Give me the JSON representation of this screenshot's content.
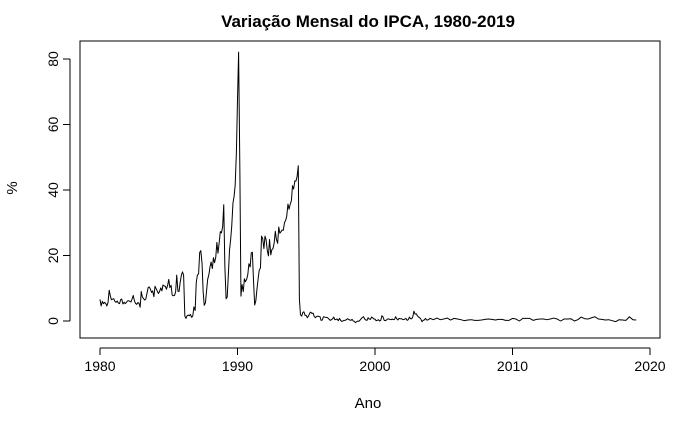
{
  "chart_data": {
    "type": "line",
    "title": "Variação Mensal do IPCA, 1980-2019",
    "xlabel": "Ano",
    "ylabel": "%",
    "xlim": [
      1980,
      2019
    ],
    "ylim": [
      0,
      82
    ],
    "x_ticks": [
      1980,
      1990,
      2000,
      2010,
      2020
    ],
    "x_tick_labels": [
      "1980",
      "1990",
      "2000",
      "2010",
      "2020"
    ],
    "y_ticks": [
      0,
      20,
      40,
      60,
      80
    ],
    "y_tick_labels": [
      "0",
      "20",
      "40",
      "60",
      "80"
    ],
    "grid": false,
    "series": [
      {
        "color": "#000000",
        "x": [
          1980.0,
          1980.08,
          1980.17,
          1980.25,
          1980.33,
          1980.42,
          1980.5,
          1980.58,
          1980.67,
          1980.75,
          1980.83,
          1980.92,
          1981.0,
          1981.08,
          1981.17,
          1981.25,
          1981.33,
          1981.42,
          1981.5,
          1981.58,
          1981.67,
          1981.75,
          1981.83,
          1981.92,
          1982.0,
          1982.08,
          1982.17,
          1982.25,
          1982.33,
          1982.42,
          1982.5,
          1982.58,
          1982.67,
          1982.75,
          1982.83,
          1982.92,
          1983.0,
          1983.08,
          1983.17,
          1983.25,
          1983.33,
          1983.42,
          1983.5,
          1983.58,
          1983.67,
          1983.75,
          1983.83,
          1983.92,
          1984.0,
          1984.08,
          1984.17,
          1984.25,
          1984.33,
          1984.42,
          1984.5,
          1984.58,
          1984.67,
          1984.75,
          1984.83,
          1984.92,
          1985.0,
          1985.08,
          1985.17,
          1985.25,
          1985.33,
          1985.42,
          1985.5,
          1985.58,
          1985.67,
          1985.75,
          1985.83,
          1985.92,
          1986.0,
          1986.08,
          1986.17,
          1986.25,
          1986.33,
          1986.42,
          1986.5,
          1986.58,
          1986.67,
          1986.75,
          1986.83,
          1986.92,
          1987.0,
          1987.08,
          1987.17,
          1987.25,
          1987.33,
          1987.42,
          1987.5,
          1987.58,
          1987.67,
          1987.75,
          1987.83,
          1987.92,
          1988.0,
          1988.08,
          1988.17,
          1988.25,
          1988.33,
          1988.42,
          1988.5,
          1988.58,
          1988.67,
          1988.75,
          1988.83,
          1988.92,
          1989.0,
          1989.08,
          1989.17,
          1989.25,
          1989.33,
          1989.42,
          1989.5,
          1989.58,
          1989.67,
          1989.75,
          1989.83,
          1989.92,
          1990.0,
          1990.08,
          1990.17,
          1990.25,
          1990.33,
          1990.42,
          1990.5,
          1990.58,
          1990.67,
          1990.75,
          1990.83,
          1990.92,
          1991.0,
          1991.08,
          1991.17,
          1991.25,
          1991.33,
          1991.42,
          1991.5,
          1991.58,
          1991.67,
          1991.75,
          1991.83,
          1991.92,
          1992.0,
          1992.08,
          1992.17,
          1992.25,
          1992.33,
          1992.42,
          1992.5,
          1992.58,
          1992.67,
          1992.75,
          1992.83,
          1992.92,
          1993.0,
          1993.08,
          1993.17,
          1993.25,
          1993.33,
          1993.42,
          1993.5,
          1993.58,
          1993.67,
          1993.75,
          1993.83,
          1993.92,
          1994.0,
          1994.08,
          1994.17,
          1994.25,
          1994.33,
          1994.42,
          1994.5,
          1994.58,
          1994.67,
          1994.75,
          1994.83,
          1994.92,
          1995.0,
          1995.08,
          1995.17,
          1995.25,
          1995.33,
          1995.42,
          1995.5,
          1995.58,
          1995.67,
          1995.75,
          1995.83,
          1995.92,
          1996.0,
          1996.08,
          1996.17,
          1996.25,
          1996.33,
          1996.42,
          1996.5,
          1996.58,
          1996.67,
          1996.75,
          1996.83,
          1996.92,
          1997.0,
          1997.08,
          1997.17,
          1997.25,
          1997.33,
          1997.42,
          1997.5,
          1997.58,
          1997.67,
          1997.75,
          1997.83,
          1997.92,
          1998.0,
          1998.08,
          1998.17,
          1998.25,
          1998.33,
          1998.42,
          1998.5,
          1998.58,
          1998.67,
          1998.75,
          1998.83,
          1998.92,
          1999.0,
          1999.08,
          1999.17,
          1999.25,
          1999.33,
          1999.42,
          1999.5,
          1999.58,
          1999.67,
          1999.75,
          1999.83,
          1999.92,
          2000.0,
          2000.08,
          2000.17,
          2000.25,
          2000.33,
          2000.42,
          2000.5,
          2000.58,
          2000.67,
          2000.75,
          2000.83,
          2000.92,
          2001.0,
          2001.08,
          2001.17,
          2001.25,
          2001.33,
          2001.42,
          2001.5,
          2001.58,
          2001.67,
          2001.75,
          2001.83,
          2001.92,
          2002.0,
          2002.08,
          2002.17,
          2002.25,
          2002.33,
          2002.42,
          2002.5,
          2002.58,
          2002.67,
          2002.75,
          2002.83,
          2002.92,
          2003.0,
          2003.08,
          2003.17,
          2003.25,
          2003.33,
          2003.42,
          2003.5,
          2003.58,
          2003.67,
          2003.75,
          2003.83,
          2003.92,
          2004.0,
          2004.25,
          2004.5,
          2004.75,
          2005.0,
          2005.25,
          2005.5,
          2005.75,
          2006.0,
          2006.25,
          2006.5,
          2006.75,
          2007.0,
          2007.25,
          2007.5,
          2007.75,
          2008.0,
          2008.25,
          2008.5,
          2008.75,
          2009.0,
          2009.25,
          2009.5,
          2009.75,
          2010.0,
          2010.25,
          2010.5,
          2010.75,
          2011.0,
          2011.25,
          2011.5,
          2011.75,
          2012.0,
          2012.25,
          2012.5,
          2012.75,
          2013.0,
          2013.25,
          2013.5,
          2013.75,
          2014.0,
          2014.25,
          2014.5,
          2014.75,
          2015.0,
          2015.25,
          2015.5,
          2015.75,
          2016.0,
          2016.25,
          2016.5,
          2016.75,
          2017.0,
          2017.25,
          2017.5,
          2017.75,
          2018.0,
          2018.25,
          2018.5,
          2018.75,
          2019.0
        ],
        "y": [
          6.6,
          4.6,
          6.0,
          5.3,
          5.7,
          5.3,
          4.6,
          5.6,
          9.4,
          7.7,
          6.5,
          6.7,
          6.8,
          6.0,
          5.7,
          6.1,
          5.5,
          5.3,
          6.5,
          6.7,
          5.2,
          5.7,
          5.3,
          5.7,
          6.1,
          6.2,
          6.0,
          5.8,
          6.7,
          7.8,
          6.2,
          5.4,
          5.1,
          5.6,
          5.5,
          4.2,
          9.0,
          7.3,
          6.8,
          6.4,
          6.7,
          8.5,
          10.2,
          10.4,
          9.7,
          8.7,
          9.2,
          7.4,
          10.6,
          9.9,
          9.1,
          8.4,
          9.0,
          10.1,
          9.2,
          11.0,
          10.7,
          10.6,
          9.7,
          10.9,
          12.7,
          10.2,
          10.9,
          7.9,
          7.7,
          7.8,
          8.9,
          14.0,
          9.1,
          9.0,
          11.8,
          14.0,
          15.0,
          14.0,
          1.5,
          0.8,
          1.6,
          1.8,
          1.6,
          2.0,
          1.1,
          1.6,
          4.3,
          3.2,
          11.7,
          14.0,
          14.4,
          20.9,
          21.5,
          17.7,
          9.1,
          4.8,
          5.6,
          9.2,
          12.7,
          14.2,
          16.5,
          18.0,
          16.0,
          19.3,
          17.8,
          19.5,
          24.0,
          20.7,
          24.0,
          27.3,
          26.9,
          28.8,
          35.5,
          16.8,
          6.8,
          7.3,
          13.8,
          21.7,
          24.8,
          28.9,
          36.0,
          38.0,
          41.4,
          51.5,
          67.6,
          82.1,
          47.0,
          7.6,
          11.1,
          9.0,
          12.9,
          12.0,
          12.8,
          14.2,
          17.5,
          16.5,
          20.8,
          21.0,
          11.8,
          4.9,
          6.1,
          9.9,
          12.9,
          15.5,
          16.2,
          25.9,
          25.2,
          22.1,
          25.9,
          24.8,
          21.4,
          19.9,
          24.9,
          20.2,
          21.8,
          22.1,
          23.9,
          27.4,
          24.9,
          23.7,
          28.7,
          26.8,
          27.3,
          27.8,
          27.7,
          30.1,
          30.7,
          32.0,
          35.7,
          34.1,
          35.6,
          36.8,
          41.3,
          40.3,
          42.8,
          42.7,
          44.0,
          47.4,
          6.8,
          1.9,
          1.5,
          2.6,
          2.8,
          1.7,
          1.7,
          1.0,
          1.6,
          2.4,
          2.7,
          2.3,
          2.4,
          1.4,
          1.0,
          1.4,
          1.5,
          1.4,
          1.3,
          0.2,
          0.3,
          1.3,
          1.2,
          1.1,
          1.1,
          0.9,
          0.5,
          0.2,
          0.4,
          0.7,
          1.2,
          0.4,
          0.5,
          0.6,
          0.1,
          0.8,
          0.2,
          -0.1,
          0.0,
          0.2,
          0.2,
          0.4,
          0.7,
          0.5,
          0.3,
          0.2,
          0.5,
          0.0,
          -0.1,
          -0.5,
          -0.2,
          0.0,
          -0.1,
          0.3,
          0.7,
          1.1,
          1.3,
          0.6,
          0.3,
          0.2,
          1.0,
          0.6,
          0.5,
          1.2,
          1.0,
          0.6,
          0.6,
          0.1,
          0.2,
          0.4,
          0.0,
          0.2,
          1.6,
          1.3,
          0.2,
          0.1,
          0.3,
          0.6,
          0.6,
          0.5,
          0.4,
          0.6,
          0.4,
          0.5,
          1.3,
          0.7,
          0.3,
          0.8,
          0.7,
          0.7,
          0.5,
          0.4,
          0.6,
          0.8,
          0.2,
          0.4,
          1.2,
          0.7,
          0.7,
          1.3,
          3.0,
          2.1,
          2.2,
          1.6,
          1.2,
          1.0,
          0.6,
          -0.2,
          0.2,
          0.3,
          0.8,
          0.3,
          0.3,
          0.5,
          0.8,
          0.4,
          0.9,
          0.4,
          0.6,
          0.9,
          0.3,
          0.8,
          0.6,
          0.4,
          0.1,
          0.3,
          0.4,
          0.2,
          0.2,
          0.3,
          0.5,
          0.6,
          0.5,
          0.3,
          0.5,
          0.5,
          0.2,
          0.2,
          0.8,
          0.6,
          0.0,
          0.8,
          0.8,
          0.8,
          0.2,
          0.5,
          0.6,
          0.6,
          0.4,
          0.6,
          0.9,
          0.6,
          0.0,
          0.6,
          0.6,
          0.7,
          0.0,
          0.4,
          1.2,
          0.7,
          0.6,
          1.0,
          1.3,
          0.6,
          0.5,
          0.3,
          0.4,
          0.1,
          -0.2,
          0.4,
          0.3,
          0.2,
          1.3,
          0.4,
          0.3
        ]
      }
    ]
  }
}
